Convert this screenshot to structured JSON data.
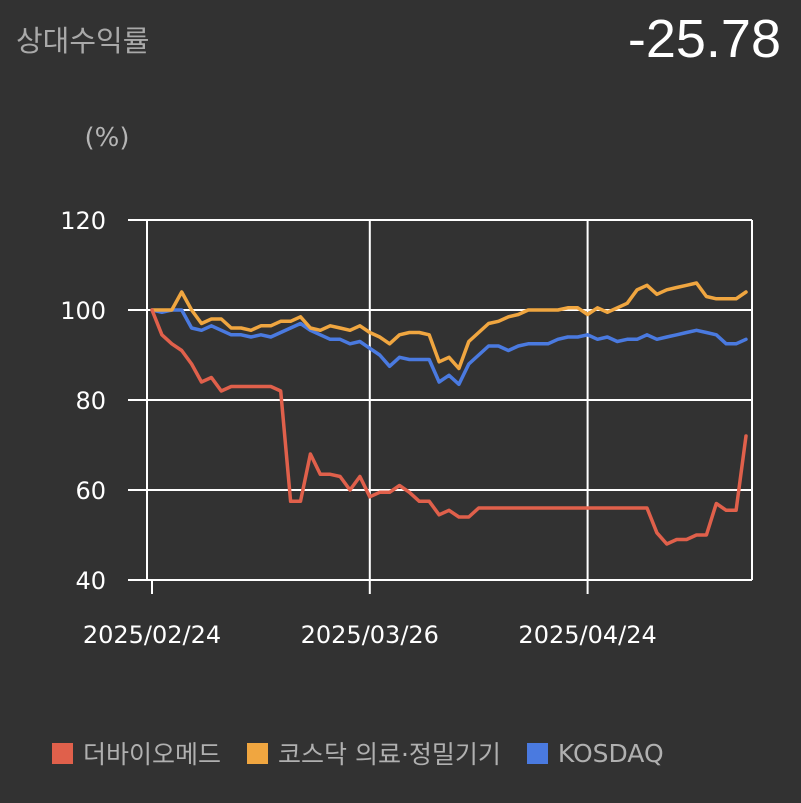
{
  "header": {
    "label": "상대수익률",
    "value": "-25.78"
  },
  "colors": {
    "background": "#323232",
    "grid": "#ffffff",
    "series_1": "#e0604b",
    "series_2": "#f0a640",
    "series_3": "#4a7ae0"
  },
  "chart_data": {
    "type": "line",
    "ylabel": "(%)",
    "ylim": [
      40,
      120
    ],
    "yticks": [
      40,
      60,
      80,
      100,
      120
    ],
    "x_count": 61,
    "x_tick_labels": [
      {
        "index": 0,
        "label": "2025/02/24"
      },
      {
        "index": 22,
        "label": "2025/03/26"
      },
      {
        "index": 44,
        "label": "2025/04/24"
      }
    ],
    "grid": true,
    "legend_position": "bottom",
    "series": [
      {
        "name": "더바이오메드",
        "color": "#e0604b",
        "values": [
          100,
          94.5,
          92.5,
          91,
          88,
          84,
          85,
          82,
          83,
          83,
          83,
          83,
          83,
          82,
          57.5,
          57.5,
          68,
          63.5,
          63.5,
          63,
          60,
          63,
          58.5,
          59.5,
          59.5,
          61,
          59.5,
          57.5,
          57.5,
          54.5,
          55.5,
          54,
          54,
          56,
          56,
          56,
          56,
          56,
          56,
          56,
          56,
          56,
          56,
          56,
          56,
          56,
          56,
          56,
          56,
          56,
          56,
          50.5,
          48,
          49,
          49,
          50,
          50,
          57,
          55.5,
          55.5,
          72
        ]
      },
      {
        "name": "코스닥 의료·정밀기기",
        "color": "#f0a640",
        "values": [
          100,
          100,
          100,
          104,
          100,
          97,
          98,
          98,
          96,
          96,
          95.5,
          96.5,
          96.5,
          97.5,
          97.5,
          98.5,
          96,
          95.5,
          96.5,
          96,
          95.5,
          96.5,
          95,
          94,
          92.5,
          94.5,
          95,
          95,
          94.5,
          88.5,
          89.5,
          87,
          93,
          95,
          97,
          97.5,
          98.5,
          99,
          100,
          100,
          100,
          100,
          100.5,
          100.5,
          99,
          100.5,
          99.5,
          100.5,
          101.5,
          104.5,
          105.5,
          103.5,
          104.5,
          105,
          105.5,
          106,
          103,
          102.5,
          102.5,
          102.5,
          104
        ]
      },
      {
        "name": "KOSDAQ",
        "color": "#4a7ae0",
        "values": [
          100,
          99.5,
          100,
          100,
          96,
          95.5,
          96.5,
          95.5,
          94.5,
          94.5,
          94,
          94.5,
          94,
          95,
          96,
          97,
          95.5,
          94.5,
          93.5,
          93.5,
          92.5,
          93,
          91.5,
          90,
          87.5,
          89.5,
          89,
          89,
          89,
          84,
          85.5,
          83.5,
          88,
          90,
          92,
          92,
          91,
          92,
          92.5,
          92.5,
          92.5,
          93.5,
          94,
          94,
          94.5,
          93.5,
          94,
          93,
          93.5,
          93.5,
          94.5,
          93.5,
          94,
          94.5,
          95,
          95.5,
          95,
          94.5,
          92.5,
          92.5,
          93.5
        ]
      }
    ]
  }
}
